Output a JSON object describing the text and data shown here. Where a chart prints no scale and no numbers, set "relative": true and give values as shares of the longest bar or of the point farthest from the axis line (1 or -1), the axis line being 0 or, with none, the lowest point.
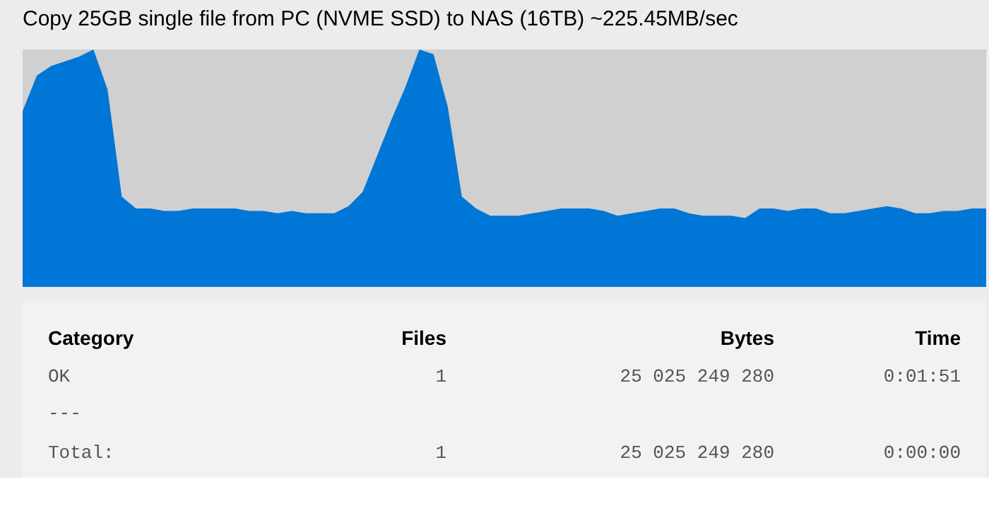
{
  "chart_data": {
    "type": "area",
    "title": "Copy 25GB single file from PC (NVME SSD) to NAS (16TB)  ~225.45MB/sec",
    "relative": true,
    "categories": [
      null,
      null,
      null,
      null,
      null,
      null,
      null,
      null,
      null,
      null,
      null,
      null,
      null,
      null,
      null,
      null,
      null,
      null,
      null,
      null,
      null,
      null,
      null,
      null,
      null,
      null,
      null,
      null,
      null,
      null,
      null,
      null,
      null,
      null,
      null,
      null,
      null,
      null,
      null,
      null,
      null,
      null,
      null,
      null,
      null,
      null,
      null,
      null,
      null,
      null,
      null,
      null,
      null,
      null,
      null,
      null,
      null,
      null,
      null,
      null,
      null,
      null,
      null,
      null,
      null,
      null,
      null,
      null,
      null
    ],
    "series": [
      {
        "color": "#0076d7",
        "values": [
          0.74,
          0.89,
          0.93,
          0.95,
          0.97,
          1,
          0.83,
          0.38,
          0.33,
          0.33,
          0.32,
          0.32,
          0.33,
          0.33,
          0.33,
          0.33,
          0.32,
          0.32,
          0.31,
          0.32,
          0.31,
          0.31,
          0.31,
          0.34,
          0.4,
          0.55,
          0.7,
          0.84,
          1,
          0.98,
          0.76,
          0.38,
          0.33,
          0.3,
          0.3,
          0.3,
          0.31,
          0.32,
          0.33,
          0.33,
          0.33,
          0.32,
          0.3,
          0.31,
          0.32,
          0.33,
          0.33,
          0.31,
          0.3,
          0.3,
          0.3,
          0.29,
          0.33,
          0.33,
          0.32,
          0.33,
          0.33,
          0.31,
          0.31,
          0.32,
          0.33,
          0.34,
          0.33,
          0.31,
          0.31,
          0.32,
          0.32,
          0.33,
          0.33
        ]
      }
    ],
    "annotations": [
      "Category",
      "Files",
      "Bytes",
      "Time",
      "OK",
      "1",
      "25 025 249 280",
      "0:01:51",
      "---",
      "Total:",
      "1",
      "25 025 249 280",
      "0:00:00"
    ]
  }
}
